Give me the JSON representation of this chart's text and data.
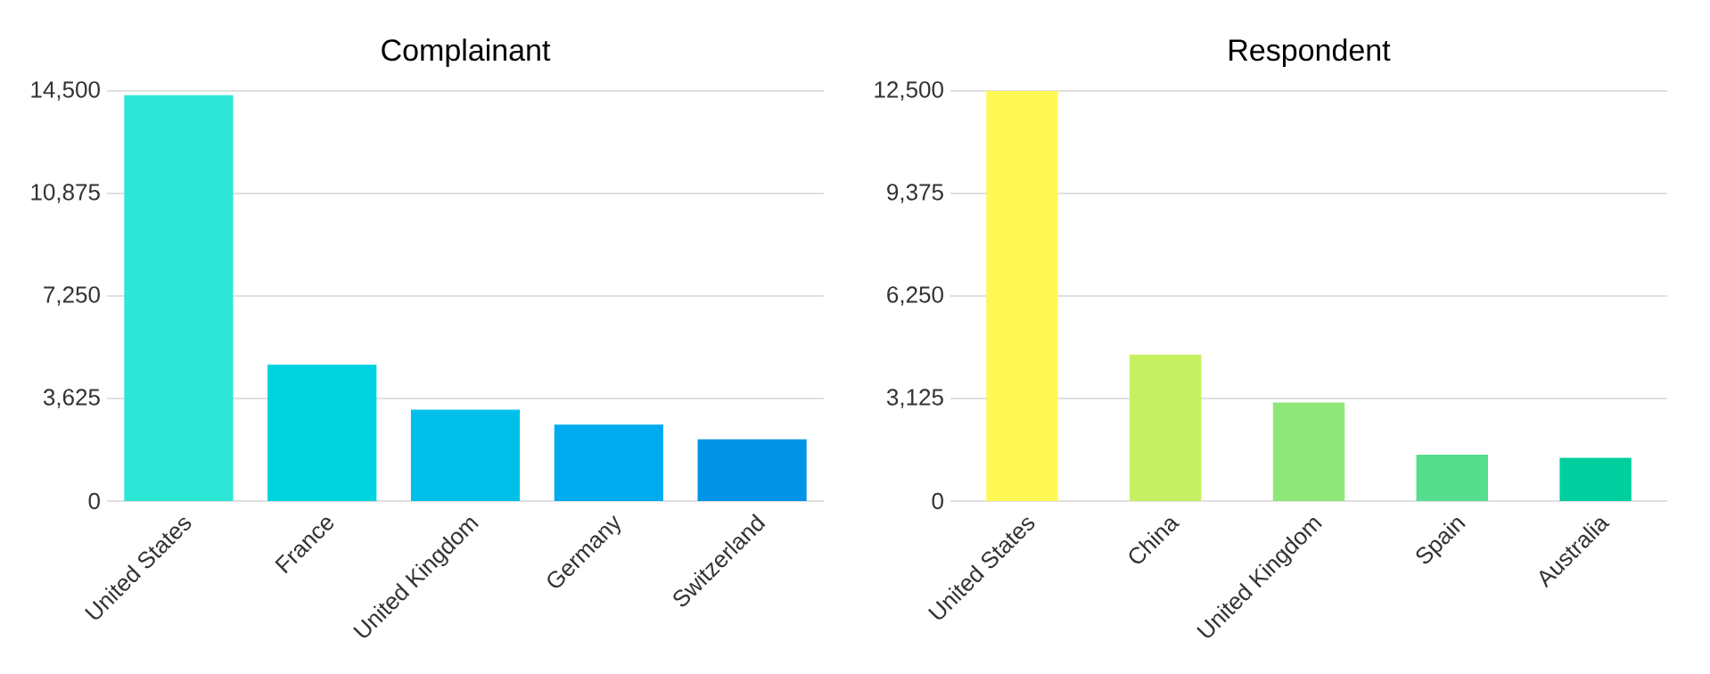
{
  "chart_data": [
    {
      "type": "bar",
      "title": "Complainant",
      "categories": [
        "United States",
        "France",
        "United Kingdom",
        "Germany",
        "Switzerland"
      ],
      "values": [
        14350,
        4820,
        3230,
        2700,
        2180
      ],
      "colors": [
        "#2ee6d6",
        "#00d3e0",
        "#00c0ea",
        "#00abf0",
        "#0093e6"
      ],
      "ylim": [
        0,
        14500
      ],
      "yticks": [
        {
          "value": 0,
          "label": "0"
        },
        {
          "value": 3625,
          "label": "3,625"
        },
        {
          "value": 7250,
          "label": "7,250"
        },
        {
          "value": 10875,
          "label": "10,875"
        },
        {
          "value": 14500,
          "label": "14,500"
        }
      ],
      "grid": "y"
    },
    {
      "type": "bar",
      "title": "Respondent",
      "categories": [
        "United States",
        "China",
        "United Kingdom",
        "Spain",
        "Australia"
      ],
      "values": [
        12500,
        4460,
        3000,
        1410,
        1320
      ],
      "colors": [
        "#fff855",
        "#c6f062",
        "#8ee879",
        "#56dd8e",
        "#00cf9f"
      ],
      "ylim": [
        0,
        12500
      ],
      "yticks": [
        {
          "value": 0,
          "label": "0"
        },
        {
          "value": 3125,
          "label": "3,125"
        },
        {
          "value": 6250,
          "label": "6,250"
        },
        {
          "value": 9375,
          "label": "9,375"
        },
        {
          "value": 12500,
          "label": "12,500"
        }
      ],
      "grid": "y"
    }
  ]
}
